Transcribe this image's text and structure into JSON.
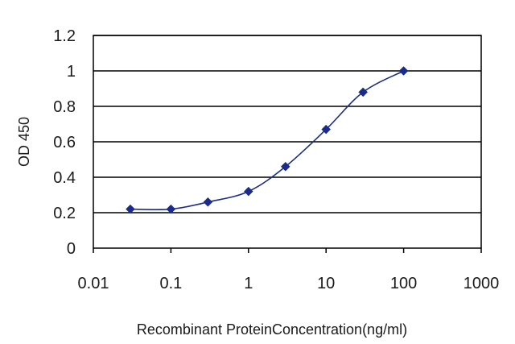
{
  "chart_data": {
    "type": "line",
    "xlabel": "Recombinant ProteinConcentration(ng/ml)",
    "ylabel": "OD 450",
    "xscale": "log",
    "xlim": [
      0.01,
      1000
    ],
    "ylim": [
      0,
      1.2
    ],
    "grid": "horizontal",
    "legend": "none",
    "x_ticks": [
      "0.01",
      "0.1",
      "1",
      "10",
      "100",
      "1000"
    ],
    "y_ticks": [
      "0",
      "0.2",
      "0.4",
      "0.6",
      "0.8",
      "1",
      "1.2"
    ],
    "series": [
      {
        "color": "#1a2b8c",
        "marker": "diamond",
        "x": [
          0.03,
          0.1,
          0.3,
          1,
          3,
          10,
          30,
          100
        ],
        "y": [
          0.22,
          0.22,
          0.26,
          0.32,
          0.46,
          0.67,
          0.88,
          1.0
        ]
      }
    ]
  }
}
